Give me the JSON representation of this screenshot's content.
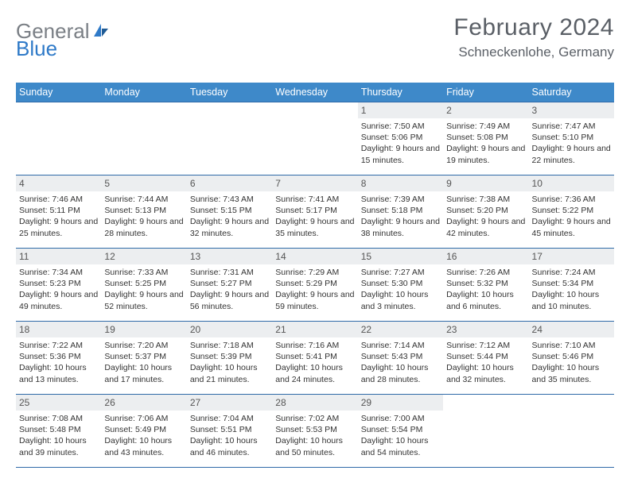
{
  "logo": {
    "text1": "General",
    "text2": "Blue"
  },
  "title": {
    "month": "February 2024",
    "location": "Schneckenlohe, Germany"
  },
  "colors": {
    "header_bg": "#3e89c9",
    "header_text": "#ffffff",
    "cell_border": "#2f6aa8",
    "daynum_bg": "#eceef0",
    "text": "#333333",
    "logo_gray": "#7a7f85",
    "logo_blue": "#2f7ac8"
  },
  "weekdays": [
    "Sunday",
    "Monday",
    "Tuesday",
    "Wednesday",
    "Thursday",
    "Friday",
    "Saturday"
  ],
  "weeks": [
    [
      null,
      null,
      null,
      null,
      {
        "n": "1",
        "sr": "7:50 AM",
        "ss": "5:06 PM",
        "dl": "9 hours and 15 minutes."
      },
      {
        "n": "2",
        "sr": "7:49 AM",
        "ss": "5:08 PM",
        "dl": "9 hours and 19 minutes."
      },
      {
        "n": "3",
        "sr": "7:47 AM",
        "ss": "5:10 PM",
        "dl": "9 hours and 22 minutes."
      }
    ],
    [
      {
        "n": "4",
        "sr": "7:46 AM",
        "ss": "5:11 PM",
        "dl": "9 hours and 25 minutes."
      },
      {
        "n": "5",
        "sr": "7:44 AM",
        "ss": "5:13 PM",
        "dl": "9 hours and 28 minutes."
      },
      {
        "n": "6",
        "sr": "7:43 AM",
        "ss": "5:15 PM",
        "dl": "9 hours and 32 minutes."
      },
      {
        "n": "7",
        "sr": "7:41 AM",
        "ss": "5:17 PM",
        "dl": "9 hours and 35 minutes."
      },
      {
        "n": "8",
        "sr": "7:39 AM",
        "ss": "5:18 PM",
        "dl": "9 hours and 38 minutes."
      },
      {
        "n": "9",
        "sr": "7:38 AM",
        "ss": "5:20 PM",
        "dl": "9 hours and 42 minutes."
      },
      {
        "n": "10",
        "sr": "7:36 AM",
        "ss": "5:22 PM",
        "dl": "9 hours and 45 minutes."
      }
    ],
    [
      {
        "n": "11",
        "sr": "7:34 AM",
        "ss": "5:23 PM",
        "dl": "9 hours and 49 minutes."
      },
      {
        "n": "12",
        "sr": "7:33 AM",
        "ss": "5:25 PM",
        "dl": "9 hours and 52 minutes."
      },
      {
        "n": "13",
        "sr": "7:31 AM",
        "ss": "5:27 PM",
        "dl": "9 hours and 56 minutes."
      },
      {
        "n": "14",
        "sr": "7:29 AM",
        "ss": "5:29 PM",
        "dl": "9 hours and 59 minutes."
      },
      {
        "n": "15",
        "sr": "7:27 AM",
        "ss": "5:30 PM",
        "dl": "10 hours and 3 minutes."
      },
      {
        "n": "16",
        "sr": "7:26 AM",
        "ss": "5:32 PM",
        "dl": "10 hours and 6 minutes."
      },
      {
        "n": "17",
        "sr": "7:24 AM",
        "ss": "5:34 PM",
        "dl": "10 hours and 10 minutes."
      }
    ],
    [
      {
        "n": "18",
        "sr": "7:22 AM",
        "ss": "5:36 PM",
        "dl": "10 hours and 13 minutes."
      },
      {
        "n": "19",
        "sr": "7:20 AM",
        "ss": "5:37 PM",
        "dl": "10 hours and 17 minutes."
      },
      {
        "n": "20",
        "sr": "7:18 AM",
        "ss": "5:39 PM",
        "dl": "10 hours and 21 minutes."
      },
      {
        "n": "21",
        "sr": "7:16 AM",
        "ss": "5:41 PM",
        "dl": "10 hours and 24 minutes."
      },
      {
        "n": "22",
        "sr": "7:14 AM",
        "ss": "5:43 PM",
        "dl": "10 hours and 28 minutes."
      },
      {
        "n": "23",
        "sr": "7:12 AM",
        "ss": "5:44 PM",
        "dl": "10 hours and 32 minutes."
      },
      {
        "n": "24",
        "sr": "7:10 AM",
        "ss": "5:46 PM",
        "dl": "10 hours and 35 minutes."
      }
    ],
    [
      {
        "n": "25",
        "sr": "7:08 AM",
        "ss": "5:48 PM",
        "dl": "10 hours and 39 minutes."
      },
      {
        "n": "26",
        "sr": "7:06 AM",
        "ss": "5:49 PM",
        "dl": "10 hours and 43 minutes."
      },
      {
        "n": "27",
        "sr": "7:04 AM",
        "ss": "5:51 PM",
        "dl": "10 hours and 46 minutes."
      },
      {
        "n": "28",
        "sr": "7:02 AM",
        "ss": "5:53 PM",
        "dl": "10 hours and 50 minutes."
      },
      {
        "n": "29",
        "sr": "7:00 AM",
        "ss": "5:54 PM",
        "dl": "10 hours and 54 minutes."
      },
      null,
      null
    ]
  ],
  "labels": {
    "sunrise": "Sunrise:",
    "sunset": "Sunset:",
    "daylight": "Daylight:"
  }
}
